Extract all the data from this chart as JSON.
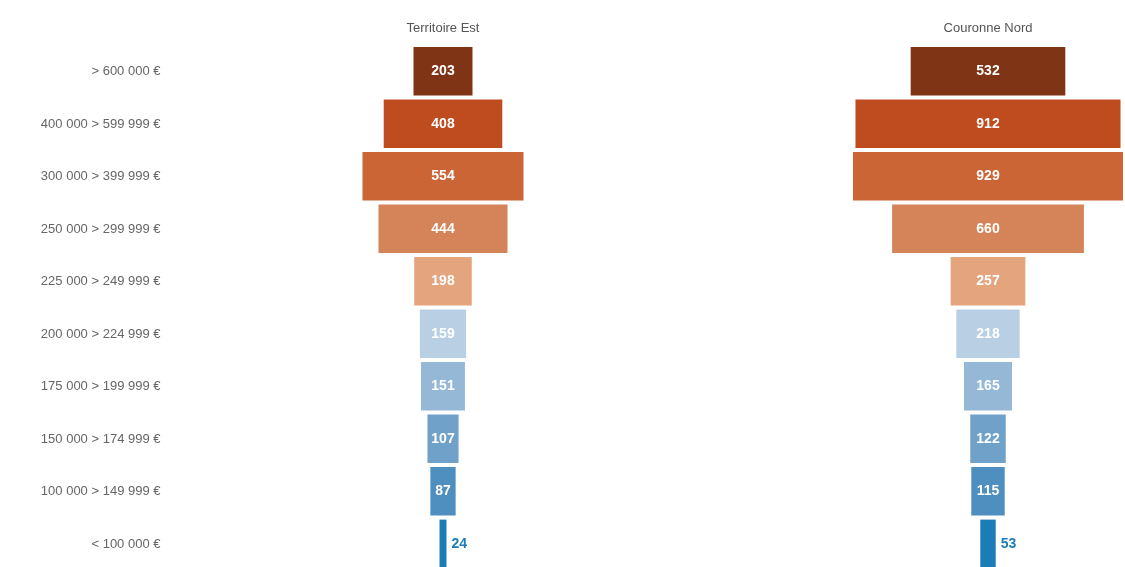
{
  "chart_data": [
    {
      "type": "other",
      "title": "Territoire Est",
      "categories": [
        "> 600 000 €",
        "400 000 > 599 999 €",
        "300 000 > 399 999 €",
        "250 000 > 299 999 €",
        "225 000 > 249 999 €",
        "200 000 > 224 999 €",
        "175 000 > 199 999 €",
        "150 000 > 174 999 €",
        "100 000 > 149 999 €",
        "< 100 000 €"
      ],
      "values": [
        203,
        408,
        554,
        444,
        198,
        159,
        151,
        107,
        87,
        24
      ],
      "colors": [
        "#7f3415",
        "#bf4c1f",
        "#cc6535",
        "#d5845a",
        "#e3a47e",
        "#b9cfe4",
        "#94b8d6",
        "#70a2c9",
        "#4f8fbf",
        "#1a7db8"
      ],
      "data_labels": true
    },
    {
      "type": "other",
      "title": "Couronne Nord",
      "categories": [
        null,
        null,
        null,
        null,
        null,
        null,
        null,
        null,
        null,
        null
      ],
      "values": [
        532,
        912,
        929,
        660,
        257,
        218,
        165,
        122,
        115,
        53
      ],
      "colors": [
        "#7f3415",
        "#bf4c1f",
        "#cc6535",
        "#d5845a",
        "#e3a47e",
        "#b9cfe4",
        "#94b8d6",
        "#70a2c9",
        "#4f8fbf",
        "#1a7db8"
      ],
      "data_labels": true
    }
  ]
}
